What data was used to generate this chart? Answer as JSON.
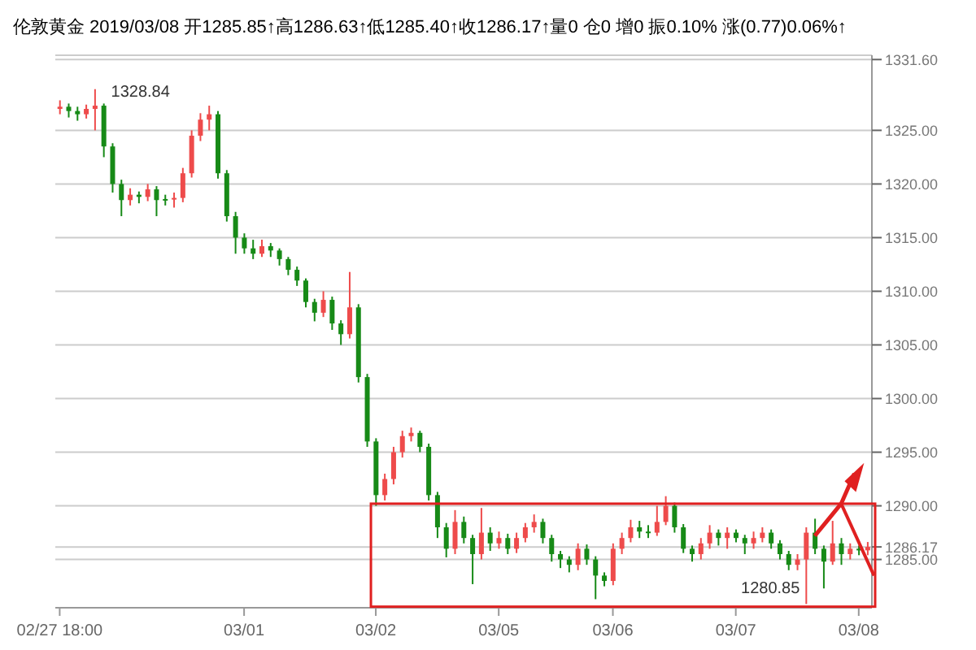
{
  "chart_data": {
    "type": "candlestick",
    "title": "伦敦黄金 2019/03/08 开1285.85↑高1286.63↑低1285.40↑收1286.17↑量0 仓0 增0 振0.10% 涨(0.77)0.06%↑",
    "categories": [
      "02/27 18:00",
      null,
      null,
      null,
      null,
      null,
      null,
      null,
      null,
      null,
      null,
      null,
      null,
      null,
      null,
      null,
      null,
      null,
      null,
      null,
      null,
      "03/01",
      null,
      null,
      null,
      null,
      null,
      null,
      null,
      null,
      null,
      null,
      null,
      null,
      null,
      null,
      "03/02",
      null,
      null,
      null,
      null,
      null,
      null,
      null,
      null,
      null,
      null,
      null,
      null,
      null,
      "03/05",
      null,
      null,
      null,
      null,
      null,
      null,
      null,
      null,
      null,
      null,
      null,
      null,
      "03/06",
      null,
      null,
      null,
      null,
      null,
      null,
      null,
      null,
      null,
      null,
      null,
      null,
      null,
      "03/07",
      null,
      null,
      null,
      null,
      null,
      null,
      null,
      null,
      null,
      null,
      null,
      null,
      null,
      "03/08",
      null
    ],
    "ohlc": [
      [
        1327.0,
        1327.8,
        1326.5,
        1327.2
      ],
      [
        1327.2,
        1327.5,
        1326.2,
        1326.8
      ],
      [
        1326.8,
        1327.2,
        1325.9,
        1326.5
      ],
      [
        1326.5,
        1327.4,
        1326.1,
        1327.0
      ],
      [
        1327.0,
        1328.84,
        1325.0,
        1327.3
      ],
      [
        1327.3,
        1327.5,
        1322.5,
        1323.5
      ],
      [
        1323.5,
        1323.8,
        1319.2,
        1320.0
      ],
      [
        1320.0,
        1320.4,
        1317.0,
        1318.5
      ],
      [
        1318.5,
        1319.6,
        1318.0,
        1319.0
      ],
      [
        1319.0,
        1319.3,
        1318.2,
        1318.8
      ],
      [
        1318.8,
        1320.0,
        1318.4,
        1319.5
      ],
      [
        1319.5,
        1319.8,
        1317.0,
        1318.5
      ],
      [
        1318.5,
        1319.0,
        1318.0,
        1318.6
      ],
      [
        1318.6,
        1319.2,
        1317.8,
        1318.7
      ],
      [
        1318.7,
        1321.5,
        1318.3,
        1321.0
      ],
      [
        1321.0,
        1325.0,
        1320.6,
        1324.5
      ],
      [
        1324.5,
        1326.6,
        1324.0,
        1326.0
      ],
      [
        1326.0,
        1327.3,
        1325.0,
        1326.5
      ],
      [
        1326.5,
        1326.8,
        1320.5,
        1321.0
      ],
      [
        1321.0,
        1321.3,
        1316.5,
        1317.0
      ],
      [
        1317.0,
        1317.4,
        1313.5,
        1315.0
      ],
      [
        1315.0,
        1315.4,
        1313.5,
        1314.0
      ],
      [
        1314.0,
        1314.8,
        1313.0,
        1313.5
      ],
      [
        1313.5,
        1314.8,
        1313.2,
        1314.2
      ],
      [
        1314.2,
        1314.5,
        1313.2,
        1313.8
      ],
      [
        1313.8,
        1314.0,
        1312.4,
        1313.0
      ],
      [
        1313.0,
        1313.2,
        1311.5,
        1312.0
      ],
      [
        1312.0,
        1312.3,
        1310.5,
        1311.0
      ],
      [
        1311.0,
        1311.2,
        1308.5,
        1309.0
      ],
      [
        1309.0,
        1309.3,
        1307.2,
        1308.0
      ],
      [
        1308.0,
        1310.0,
        1307.6,
        1309.2
      ],
      [
        1309.2,
        1309.5,
        1306.4,
        1307.0
      ],
      [
        1307.0,
        1307.3,
        1305.0,
        1306.0
      ],
      [
        1306.0,
        1311.8,
        1305.6,
        1308.5
      ],
      [
        1308.5,
        1308.8,
        1301.5,
        1302.0
      ],
      [
        1302.0,
        1302.3,
        1295.5,
        1296.0
      ],
      [
        1296.0,
        1296.3,
        1290.0,
        1291.0
      ],
      [
        1291.0,
        1293.0,
        1290.5,
        1292.5
      ],
      [
        1292.5,
        1295.5,
        1292.0,
        1295.0
      ],
      [
        1295.0,
        1297.0,
        1294.5,
        1296.5
      ],
      [
        1296.5,
        1297.3,
        1296.0,
        1296.8
      ],
      [
        1296.8,
        1297.0,
        1295.0,
        1295.5
      ],
      [
        1295.5,
        1295.8,
        1290.5,
        1291.0
      ],
      [
        1291.0,
        1291.3,
        1287.0,
        1288.0
      ],
      [
        1288.0,
        1288.4,
        1285.2,
        1286.0
      ],
      [
        1286.0,
        1289.6,
        1285.5,
        1288.5
      ],
      [
        1288.5,
        1289.0,
        1286.5,
        1287.0
      ],
      [
        1287.0,
        1287.3,
        1282.7,
        1285.5
      ],
      [
        1285.5,
        1289.8,
        1285.0,
        1287.5
      ],
      [
        1287.5,
        1288.0,
        1285.8,
        1286.5
      ],
      [
        1286.5,
        1287.6,
        1286.0,
        1287.0
      ],
      [
        1287.0,
        1287.4,
        1285.5,
        1286.0
      ],
      [
        1286.0,
        1287.5,
        1285.6,
        1287.0
      ],
      [
        1287.0,
        1288.4,
        1286.6,
        1288.0
      ],
      [
        1288.0,
        1289.2,
        1287.5,
        1288.5
      ],
      [
        1288.5,
        1288.8,
        1286.5,
        1287.0
      ],
      [
        1287.0,
        1287.3,
        1284.8,
        1285.5
      ],
      [
        1285.5,
        1285.8,
        1284.2,
        1285.0
      ],
      [
        1285.0,
        1285.3,
        1283.8,
        1284.5
      ],
      [
        1284.5,
        1286.5,
        1284.0,
        1286.0
      ],
      [
        1286.0,
        1286.4,
        1284.5,
        1285.0
      ],
      [
        1285.0,
        1285.3,
        1281.3,
        1283.5
      ],
      [
        1283.5,
        1283.8,
        1282.5,
        1283.0
      ],
      [
        1283.0,
        1286.5,
        1282.6,
        1286.0
      ],
      [
        1286.0,
        1287.5,
        1285.5,
        1287.0
      ],
      [
        1287.0,
        1288.7,
        1286.6,
        1288.0
      ],
      [
        1288.0,
        1288.6,
        1287.0,
        1287.6
      ],
      [
        1287.6,
        1288.2,
        1287.0,
        1287.5
      ],
      [
        1287.5,
        1290.0,
        1287.2,
        1288.5
      ],
      [
        1288.5,
        1290.9,
        1288.2,
        1290.0
      ],
      [
        1290.0,
        1290.3,
        1287.5,
        1288.0
      ],
      [
        1288.0,
        1288.3,
        1285.6,
        1286.0
      ],
      [
        1286.0,
        1286.3,
        1284.8,
        1285.5
      ],
      [
        1285.5,
        1287.0,
        1285.0,
        1286.5
      ],
      [
        1286.5,
        1288.2,
        1286.0,
        1287.5
      ],
      [
        1287.5,
        1287.8,
        1286.3,
        1287.0
      ],
      [
        1287.0,
        1288.0,
        1286.0,
        1287.5
      ],
      [
        1287.5,
        1287.8,
        1286.6,
        1287.0
      ],
      [
        1287.0,
        1287.3,
        1285.5,
        1286.5
      ],
      [
        1286.5,
        1287.6,
        1286.0,
        1287.0
      ],
      [
        1287.0,
        1288.0,
        1286.6,
        1287.5
      ],
      [
        1287.5,
        1287.8,
        1286.0,
        1286.5
      ],
      [
        1286.5,
        1286.8,
        1285.0,
        1285.5
      ],
      [
        1285.5,
        1285.8,
        1284.0,
        1284.5
      ],
      [
        1284.5,
        1285.5,
        1284.0,
        1285.0
      ],
      [
        1285.0,
        1288.0,
        1280.85,
        1287.5
      ],
      [
        1287.5,
        1288.8,
        1285.5,
        1286.0
      ],
      [
        1286.0,
        1286.3,
        1282.3,
        1284.8
      ],
      [
        1284.8,
        1288.6,
        1284.5,
        1286.5
      ],
      [
        1286.5,
        1287.0,
        1284.5,
        1285.5
      ],
      [
        1285.5,
        1286.5,
        1285.0,
        1286.0
      ],
      [
        1286.0,
        1286.3,
        1285.4,
        1285.85
      ],
      [
        1285.85,
        1286.63,
        1285.4,
        1286.17
      ]
    ],
    "colors": [
      "#ee4b4b",
      "#178a17",
      "#178a17",
      "#ee4b4b",
      "#ee4b4b",
      "#178a17",
      "#178a17",
      "#178a17",
      "#ee4b4b",
      "#178a17",
      "#ee4b4b",
      "#178a17",
      "#178a17",
      "#ee4b4b",
      "#ee4b4b",
      "#ee4b4b",
      "#ee4b4b",
      "#ee4b4b",
      "#178a17",
      "#178a17",
      "#178a17",
      "#178a17",
      "#178a17",
      "#ee4b4b",
      "#178a17",
      "#178a17",
      "#178a17",
      "#178a17",
      "#178a17",
      "#178a17",
      "#ee4b4b",
      "#178a17",
      "#178a17",
      "#ee4b4b",
      "#178a17",
      "#178a17",
      "#178a17",
      "#ee4b4b",
      "#ee4b4b",
      "#ee4b4b",
      "#ee4b4b",
      "#178a17",
      "#178a17",
      "#178a17",
      "#178a17",
      "#ee4b4b",
      "#178a17",
      "#178a17",
      "#ee4b4b",
      "#178a17",
      "#ee4b4b",
      "#178a17",
      "#ee4b4b",
      "#ee4b4b",
      "#ee4b4b",
      "#178a17",
      "#178a17",
      "#178a17",
      "#178a17",
      "#ee4b4b",
      "#178a17",
      "#178a17",
      "#178a17",
      "#ee4b4b",
      "#ee4b4b",
      "#ee4b4b",
      "#178a17",
      "#178a17",
      "#ee4b4b",
      "#ee4b4b",
      "#178a17",
      "#178a17",
      "#178a17",
      "#ee4b4b",
      "#ee4b4b",
      "#178a17",
      "#ee4b4b",
      "#178a17",
      "#178a17",
      "#ee4b4b",
      "#ee4b4b",
      "#178a17",
      "#178a17",
      "#178a17",
      "#ee4b4b",
      "#ee4b4b",
      "#178a17",
      "#178a17",
      "#ee4b4b",
      "#178a17",
      "#ee4b4b",
      "#178a17",
      "#ee4b4b"
    ],
    "ylim": [
      1280.5,
      1332
    ],
    "yticks": [
      {
        "value": 1285,
        "label": "1285.00"
      },
      {
        "value": 1286.17,
        "label": "1286.17"
      },
      {
        "value": 1290,
        "label": "1290.00"
      },
      {
        "value": 1295,
        "label": "1295.00"
      },
      {
        "value": 1300,
        "label": "1300.00"
      },
      {
        "value": 1305,
        "label": "1305.00"
      },
      {
        "value": 1310,
        "label": "1310.00"
      },
      {
        "value": 1315,
        "label": "1315.00"
      },
      {
        "value": 1320,
        "label": "1320.00"
      },
      {
        "value": 1325,
        "label": "1325.00"
      },
      {
        "value": 1331.6,
        "label": "1331.60"
      }
    ],
    "grid": "y",
    "annotations": [
      "1328.84",
      "1280.85"
    ]
  }
}
